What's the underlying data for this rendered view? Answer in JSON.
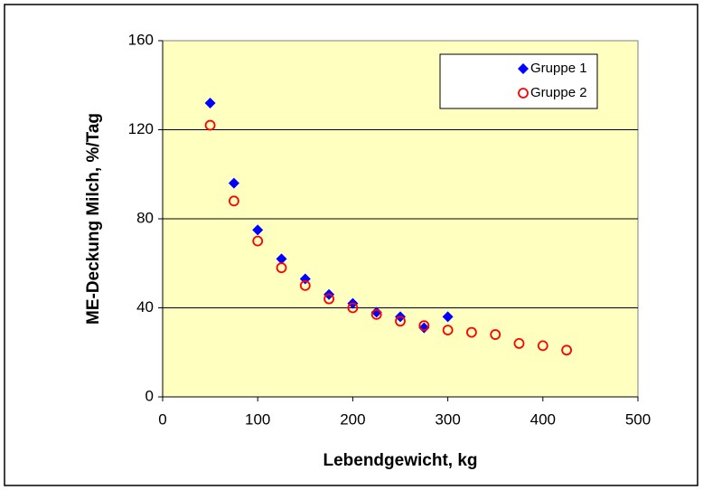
{
  "chart_data": {
    "type": "scatter",
    "xlabel": "Lebendgewicht, kg",
    "ylabel": "ME-Deckung Milch, %/Tag",
    "xlim": [
      0,
      500
    ],
    "xticks": [
      0,
      100,
      200,
      300,
      400,
      500
    ],
    "ylim": [
      0,
      160
    ],
    "yticks": [
      0,
      40,
      80,
      120,
      160
    ],
    "grid": true,
    "legend": "top-right",
    "series": [
      {
        "name": "Gruppe 1",
        "color": "#0000ff",
        "marker": "diamond",
        "x": [
          50,
          75,
          100,
          125,
          150,
          175,
          200,
          225,
          250,
          275,
          300
        ],
        "values": [
          132,
          96,
          75,
          62,
          53,
          46,
          42,
          38,
          36,
          31,
          36
        ]
      },
      {
        "name": "Gruppe 2",
        "color": "#ff0000",
        "marker": "circle",
        "x": [
          50,
          75,
          100,
          125,
          150,
          175,
          200,
          225,
          250,
          275,
          300,
          325,
          350,
          375,
          400,
          425
        ],
        "values": [
          122,
          88,
          70,
          58,
          50,
          44,
          40,
          37,
          34,
          32,
          30,
          29,
          28,
          24,
          23,
          21
        ]
      }
    ]
  }
}
